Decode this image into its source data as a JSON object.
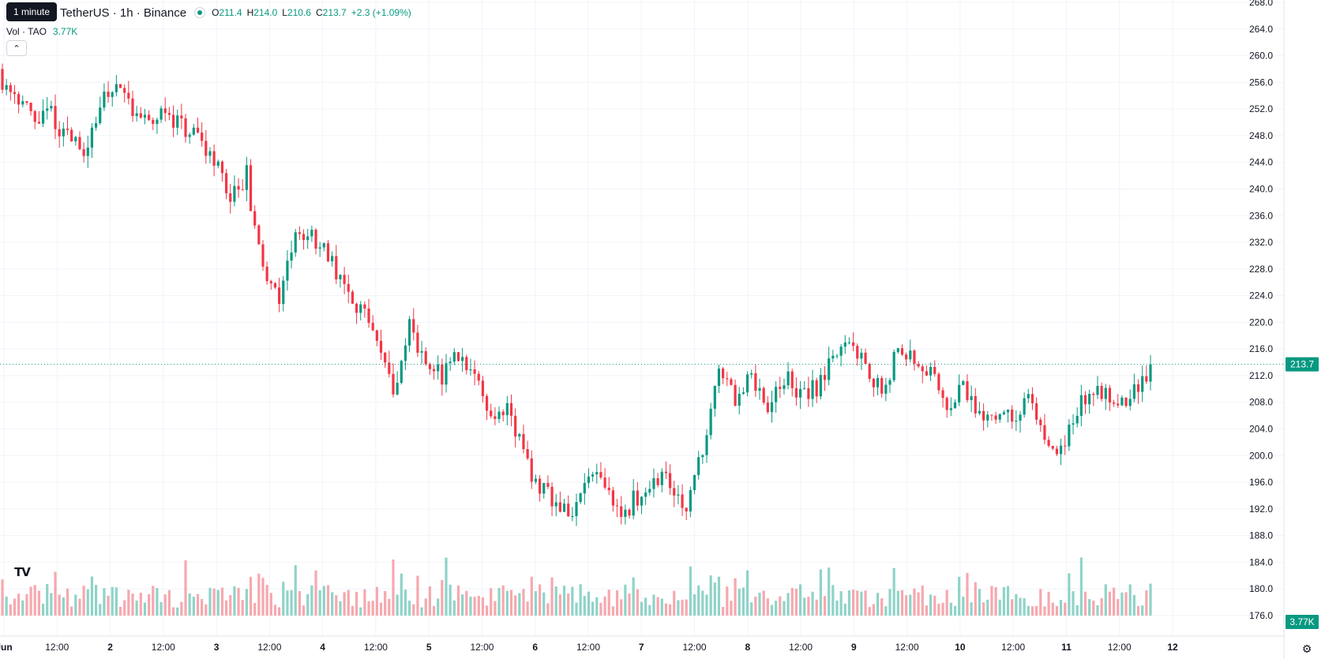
{
  "legend": {
    "tooltip": "1 minute",
    "symbol": "TetherUS · 1h · Binance",
    "open_key": "O",
    "open": "211.4",
    "high_key": "H",
    "high": "214.0",
    "low_key": "L",
    "low": "210.6",
    "close_key": "C",
    "close": "213.7",
    "change": "+2.3 (+1.09%)",
    "vol_label": "Vol · TAO",
    "vol_value": "3.77K"
  },
  "price_badge": "213.7",
  "volume_badge": "3.77K",
  "colors": {
    "up": "#089981",
    "down": "#f23645",
    "up_vol": "#8fd3c8",
    "down_vol": "#f6a8ae",
    "grid": "#f0f3fa",
    "text": "#131722"
  },
  "chart_data": {
    "type": "candlestick",
    "interval": "1h",
    "y_ticks": [
      "268.0",
      "264.0",
      "260.0",
      "256.0",
      "252.0",
      "248.0",
      "244.0",
      "240.0",
      "236.0",
      "232.0",
      "228.0",
      "224.0",
      "220.0",
      "216.0",
      "212.0",
      "208.0",
      "204.0",
      "200.0",
      "196.0",
      "192.0",
      "188.0",
      "184.0",
      "180.0",
      "176.0"
    ],
    "ylim": [
      175,
      268.5
    ],
    "x_ticks": [
      "Jun",
      "12:00",
      "2",
      "12:00",
      "3",
      "12:00",
      "4",
      "12:00",
      "5",
      "12:00",
      "6",
      "12:00",
      "7",
      "12:00",
      "8",
      "12:00",
      "9",
      "12:00",
      "10",
      "12:00",
      "11",
      "12:00",
      "12"
    ],
    "x_tick_bold": [
      true,
      false,
      true,
      false,
      true,
      false,
      true,
      false,
      true,
      false,
      true,
      false,
      true,
      false,
      true,
      false,
      true,
      false,
      true,
      false,
      true,
      false,
      true
    ],
    "last_price": 213.7,
    "close_path": [
      [
        0,
        256.5
      ],
      [
        4,
        254
      ],
      [
        8,
        250
      ],
      [
        12,
        251.5
      ],
      [
        16,
        247.5
      ],
      [
        20,
        246
      ],
      [
        24,
        252
      ],
      [
        28,
        256.5
      ],
      [
        32,
        252
      ],
      [
        36,
        249.5
      ],
      [
        40,
        252
      ],
      [
        44,
        249.5
      ],
      [
        48,
        247
      ],
      [
        52,
        245
      ],
      [
        56,
        238
      ],
      [
        60,
        242
      ],
      [
        64,
        227
      ],
      [
        68,
        224
      ],
      [
        72,
        233
      ],
      [
        76,
        233
      ],
      [
        80,
        230
      ],
      [
        84,
        226
      ],
      [
        88,
        222
      ],
      [
        92,
        216
      ],
      [
        96,
        210
      ],
      [
        100,
        219
      ],
      [
        104,
        214
      ],
      [
        108,
        212
      ],
      [
        112,
        215
      ],
      [
        116,
        213
      ],
      [
        120,
        206
      ],
      [
        124,
        208
      ],
      [
        128,
        200
      ],
      [
        132,
        195
      ],
      [
        136,
        193
      ],
      [
        140,
        191
      ],
      [
        144,
        197
      ],
      [
        148,
        195
      ],
      [
        152,
        191
      ],
      [
        156,
        194
      ],
      [
        160,
        197
      ],
      [
        164,
        196
      ],
      [
        168,
        193
      ],
      [
        172,
        201
      ],
      [
        176,
        212
      ],
      [
        180,
        209
      ],
      [
        184,
        212
      ],
      [
        188,
        206
      ],
      [
        192,
        212
      ],
      [
        196,
        209
      ],
      [
        200,
        210
      ],
      [
        204,
        214
      ],
      [
        208,
        218
      ],
      [
        212,
        214
      ],
      [
        216,
        209
      ],
      [
        220,
        216
      ],
      [
        224,
        215
      ],
      [
        228,
        212
      ],
      [
        232,
        208
      ],
      [
        236,
        210
      ],
      [
        240,
        206
      ],
      [
        244,
        207
      ],
      [
        248,
        205
      ],
      [
        252,
        209
      ],
      [
        256,
        203
      ],
      [
        260,
        200
      ],
      [
        264,
        207
      ],
      [
        268,
        210
      ],
      [
        272,
        209
      ],
      [
        276,
        208
      ],
      [
        280,
        211
      ],
      [
        282,
        213.7
      ]
    ],
    "candle_count": 283,
    "seed": 11
  }
}
